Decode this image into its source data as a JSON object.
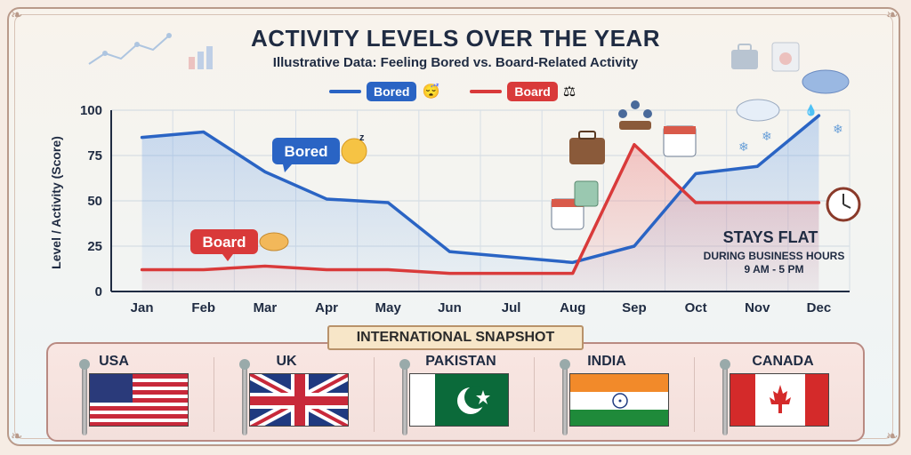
{
  "chart_data": {
    "type": "line",
    "title": "ACTIVITY LEVELS OVER THE YEAR",
    "subtitle": "Illustrative Data: Feeling Bored vs. Board-Related Activity",
    "ylabel": "Level / Activity (Score)",
    "xlabel": "",
    "ylim": [
      0,
      100
    ],
    "yticks": [
      0,
      25,
      50,
      75,
      100
    ],
    "categories": [
      "Jan",
      "Feb",
      "Mar",
      "Apr",
      "May",
      "Jun",
      "Jul",
      "Aug",
      "Sep",
      "Oct",
      "Nov",
      "Dec"
    ],
    "series": [
      {
        "name": "Bored",
        "color": "#2a64c4",
        "values": [
          85,
          88,
          66,
          51,
          49,
          22,
          19,
          16,
          25,
          65,
          69,
          97
        ]
      },
      {
        "name": "Board",
        "color": "#d93a3a",
        "values": [
          12,
          12,
          14,
          12,
          12,
          10,
          10,
          10,
          81,
          49,
          49,
          49
        ]
      }
    ],
    "grid": true,
    "legend_position": "top-center",
    "annotations": {
      "bored_label": "Bored",
      "board_label": "Board",
      "flat_title": "STAYS FLAT",
      "flat_line1": "DURING BUSINESS HOURS",
      "flat_line2": "9 AM - 5 PM"
    }
  },
  "legend": {
    "bored": "Bored",
    "board": "Board",
    "bored_color": "#2a64c4",
    "board_color": "#d93a3a",
    "bored_icon": "sleepy-face-icon",
    "board_icon": "gavel-icon"
  },
  "snapshot": {
    "title": "INTERNATIONAL SNAPSHOT",
    "countries": [
      {
        "name": "USA",
        "flag_icon": "usa-flag-icon"
      },
      {
        "name": "UK",
        "flag_icon": "uk-flag-icon"
      },
      {
        "name": "PAKISTAN",
        "flag_icon": "pakistan-flag-icon"
      },
      {
        "name": "INDIA",
        "flag_icon": "india-flag-icon"
      },
      {
        "name": "CANADA",
        "flag_icon": "canada-flag-icon"
      }
    ]
  }
}
